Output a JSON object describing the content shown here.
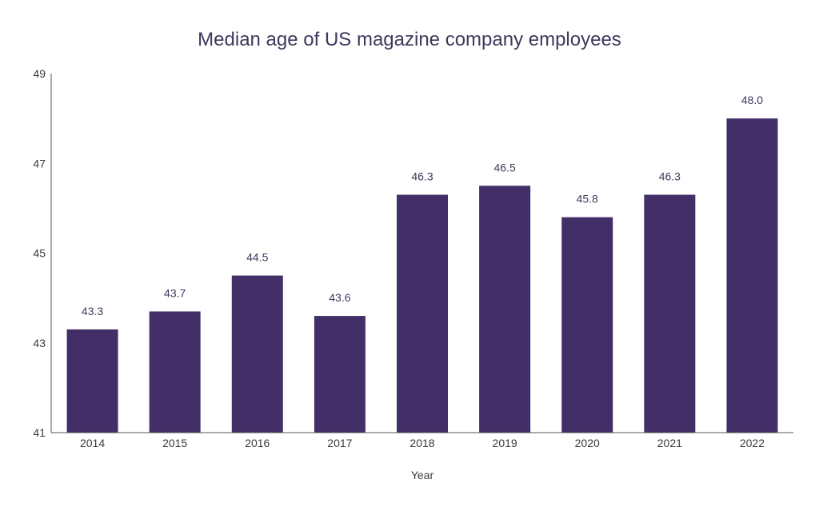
{
  "chart_data": {
    "type": "bar",
    "title": "Median age of US magazine company employees",
    "xlabel": "Year",
    "ylabel": "",
    "categories": [
      "2014",
      "2015",
      "2016",
      "2017",
      "2018",
      "2019",
      "2020",
      "2021",
      "2022"
    ],
    "values": [
      43.3,
      43.7,
      44.5,
      43.6,
      46.3,
      46.5,
      45.8,
      46.3,
      48.0
    ],
    "data_labels": [
      "43.3",
      "43.7",
      "44.5",
      "43.6",
      "46.3",
      "46.5",
      "45.8",
      "46.3",
      "48.0"
    ],
    "ylim": [
      41,
      49
    ],
    "yticks": [
      41,
      43,
      45,
      47,
      49
    ],
    "grid": false,
    "legend": "none",
    "colors": {
      "bar": "#432f68",
      "title": "#3d3a5c",
      "data_label": "#3d3a5c",
      "axis": "#555555",
      "tick_text": "#3a3a3a"
    }
  }
}
